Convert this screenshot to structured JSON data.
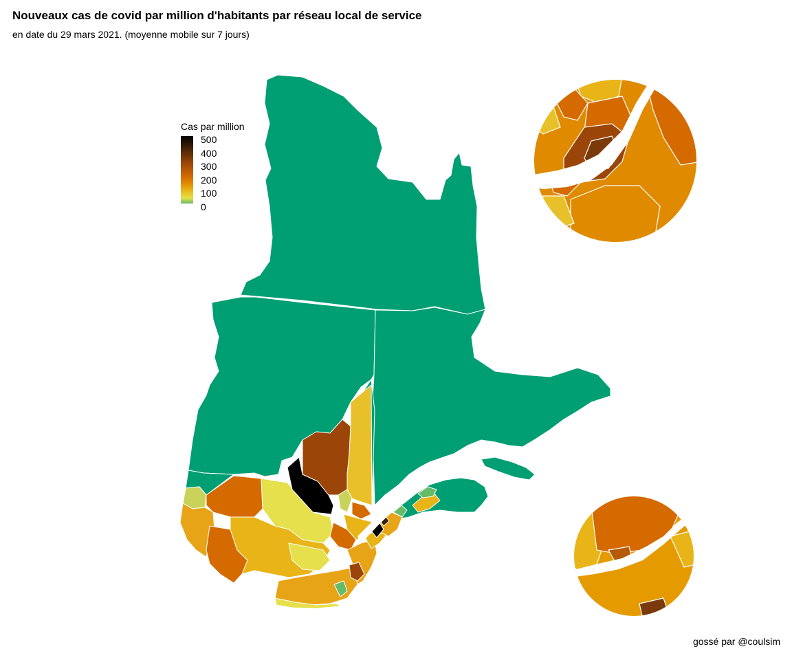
{
  "title": "Nouveaux cas de covid par million d'habitants par réseau local de service",
  "subtitle": "en date du 29 mars 2021. (moyenne mobile sur 7 jours)",
  "caption": "gossé par @coulsim",
  "legend": {
    "title": "Cas par million",
    "ticks": [
      "500",
      "400",
      "300",
      "200",
      "100",
      "0"
    ],
    "scale_min": 0,
    "scale_max": 500,
    "colors": {
      "c0": "#66bb66",
      "c50": "#e5e04b",
      "c100": "#e8b417",
      "c150": "#e08a00",
      "c200": "#d46a00",
      "c300": "#9b4508",
      "c400": "#4a2608",
      "c500": "#000000"
    }
  },
  "map": {
    "no_cases_color": "#009e73",
    "border_color": "#ffffff",
    "insets": [
      "montreal-inset",
      "quebec-inset"
    ]
  }
}
